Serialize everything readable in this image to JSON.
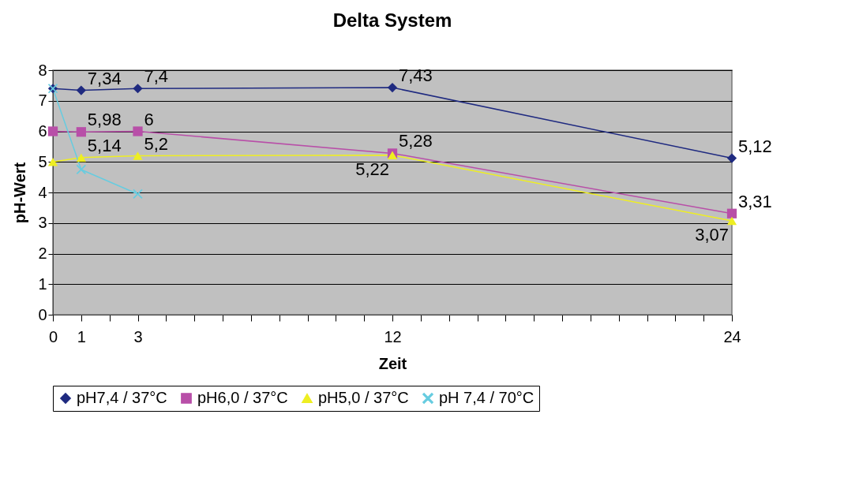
{
  "chart_data": {
    "type": "line",
    "title": "Delta System",
    "xlabel": "Zeit",
    "ylabel": "pH-Wert",
    "x": [
      0,
      1,
      3,
      12,
      24
    ],
    "series": [
      {
        "name": "pH7,4 / 37°C",
        "color": "#1f2a80",
        "marker": "diamond",
        "values": [
          7.4,
          7.34,
          7.4,
          7.43,
          5.12
        ],
        "value_labels": [
          null,
          "7,34",
          "7,4",
          "7,43",
          "5,12"
        ]
      },
      {
        "name": "pH6,0 / 37°C",
        "color": "#b84fa8",
        "marker": "square",
        "values": [
          6.0,
          5.98,
          6.0,
          5.28,
          3.31
        ],
        "value_labels": [
          null,
          "5,98",
          "6",
          "5,28",
          "3,31"
        ]
      },
      {
        "name": "pH5,0 / 37°C",
        "color": "#eeee22",
        "marker": "triangle",
        "values": [
          5.0,
          5.14,
          5.2,
          5.22,
          3.07
        ],
        "value_labels": [
          null,
          "5,14",
          "5,2",
          "5,22",
          "3,07"
        ]
      },
      {
        "name": "pH 7,4 / 70°C",
        "color": "#66cce0",
        "marker": "cross",
        "x": [
          0,
          1,
          3
        ],
        "values": [
          7.4,
          4.75,
          3.95
        ]
      }
    ],
    "xlim": [
      0,
      24
    ],
    "xticks": [
      0,
      1,
      {
        "value": 2,
        "label": null
      },
      3,
      {
        "value": 4,
        "label": null
      },
      {
        "value": 5,
        "label": null
      },
      {
        "value": 6,
        "label": null
      },
      {
        "value": 7,
        "label": null
      },
      {
        "value": 8,
        "label": null
      },
      {
        "value": 9,
        "label": null
      },
      {
        "value": 10,
        "label": null
      },
      {
        "value": 11,
        "label": null
      },
      12,
      {
        "value": 13,
        "label": null
      },
      {
        "value": 14,
        "label": null
      },
      {
        "value": 15,
        "label": null
      },
      {
        "value": 16,
        "label": null
      },
      {
        "value": 17,
        "label": null
      },
      {
        "value": 18,
        "label": null
      },
      {
        "value": 19,
        "label": null
      },
      {
        "value": 20,
        "label": null
      },
      {
        "value": 21,
        "label": null
      },
      {
        "value": 22,
        "label": null
      },
      {
        "value": 23,
        "label": null
      },
      24
    ],
    "ylim": [
      0,
      8
    ],
    "yticks": [
      0,
      1,
      2,
      3,
      4,
      5,
      6,
      7,
      8
    ],
    "grid": "y",
    "legend": "bottom"
  }
}
